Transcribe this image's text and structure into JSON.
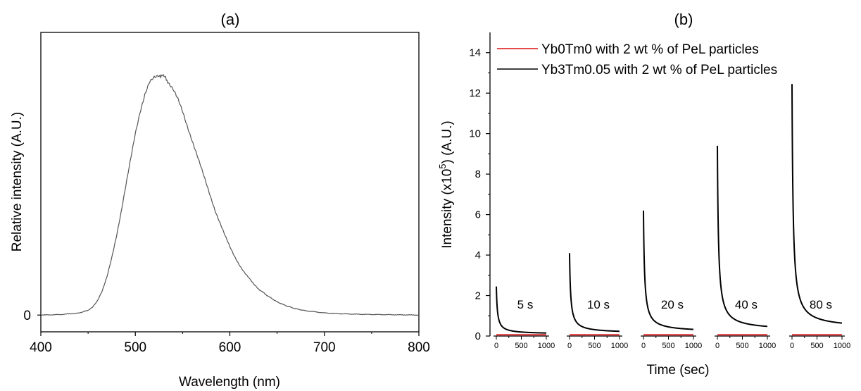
{
  "chart_data": [
    {
      "type": "line",
      "panel_label": "(a)",
      "xlabel": "Wavelength (nm)",
      "ylabel": "Relative intensity (A.U.)",
      "xlim": [
        400,
        800
      ],
      "x_ticks": [
        400,
        500,
        600,
        700,
        800
      ],
      "y_tick_labels": [
        "0"
      ],
      "ylim": [
        -0.07,
        1.18
      ],
      "grid": false,
      "series": [
        {
          "color": "#555555",
          "x": [
            400,
            420,
            440,
            450,
            455,
            460,
            465,
            470,
            475,
            480,
            485,
            490,
            495,
            500,
            505,
            510,
            515,
            520,
            525,
            528,
            532,
            535,
            540,
            545,
            550,
            555,
            560,
            565,
            570,
            575,
            580,
            585,
            590,
            595,
            600,
            605,
            610,
            615,
            620,
            625,
            630,
            640,
            650,
            660,
            670,
            680,
            700,
            720,
            740,
            760,
            780,
            800
          ],
          "y": [
            0.0,
            0.002,
            0.008,
            0.02,
            0.035,
            0.06,
            0.1,
            0.16,
            0.24,
            0.33,
            0.43,
            0.54,
            0.65,
            0.76,
            0.85,
            0.92,
            0.97,
            0.99,
            1.0,
            1.0,
            0.99,
            0.97,
            0.94,
            0.9,
            0.85,
            0.79,
            0.73,
            0.67,
            0.61,
            0.55,
            0.49,
            0.43,
            0.38,
            0.33,
            0.285,
            0.245,
            0.21,
            0.18,
            0.155,
            0.13,
            0.11,
            0.08,
            0.055,
            0.038,
            0.026,
            0.018,
            0.009,
            0.005,
            0.003,
            0.002,
            0.001,
            0.0
          ]
        }
      ]
    },
    {
      "type": "line",
      "panel_label": "(b)",
      "xlabel": "Time (sec)",
      "ylabel": "Intensity (x10",
      "ylabel_sup": "5",
      "ylabel_tail": ") (A.U.)",
      "ylim": [
        0,
        15
      ],
      "y_ticks": [
        0,
        2,
        4,
        6,
        8,
        10,
        12,
        14
      ],
      "x_segment_ticks": [
        0,
        500,
        1000
      ],
      "grid": false,
      "legend_position": "top-left",
      "series": [
        {
          "name": "Yb0Tm0 with 2 wt % of PeL particles",
          "color": "#dd1111"
        },
        {
          "name": "Yb3Tm0.05 with 2 wt % of PeL particles",
          "color": "#000000"
        }
      ],
      "segments": [
        {
          "label": "5 s",
          "x_range": [
            0,
            1000
          ],
          "black_peak": 2.45,
          "black_end": 0.1,
          "red_level": 0.06
        },
        {
          "label": "10 s",
          "x_range": [
            0,
            1000
          ],
          "black_peak": 4.1,
          "black_end": 0.15,
          "red_level": 0.06
        },
        {
          "label": "20 s",
          "x_range": [
            0,
            1000
          ],
          "black_peak": 6.2,
          "black_end": 0.2,
          "red_level": 0.06
        },
        {
          "label": "40 s",
          "x_range": [
            0,
            1000
          ],
          "black_peak": 9.4,
          "black_end": 0.28,
          "red_level": 0.06
        },
        {
          "label": "80 s",
          "x_range": [
            0,
            1000
          ],
          "black_peak": 12.45,
          "black_end": 0.38,
          "red_level": 0.06
        }
      ]
    }
  ]
}
